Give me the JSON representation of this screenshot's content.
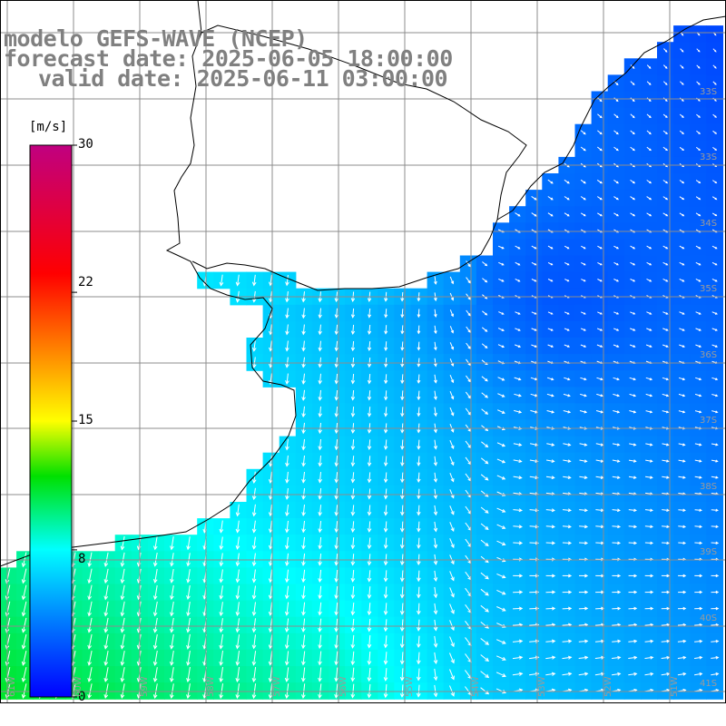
{
  "title": {
    "line1": "modelo GEFS-WAVE (NCEP)",
    "line2": "forecast date: 2025-06-05 18:00:00",
    "line3": "valid date: 2025-06-11 03:00:00"
  },
  "colorbar": {
    "unit": "[m/s]",
    "min": 0,
    "max": 30,
    "ticks": [
      "30",
      "22",
      "15",
      "8",
      "0"
    ],
    "tick_values": [
      30,
      22,
      15,
      8,
      0
    ],
    "stops": [
      {
        "v": 0,
        "color": "#0000ff"
      },
      {
        "v": 4,
        "color": "#0078ff"
      },
      {
        "v": 8,
        "color": "#00ffff"
      },
      {
        "v": 12,
        "color": "#00e000"
      },
      {
        "v": 15,
        "color": "#ffff00"
      },
      {
        "v": 19,
        "color": "#ff7f00"
      },
      {
        "v": 23,
        "color": "#ff0000"
      },
      {
        "v": 30,
        "color": "#c00080"
      }
    ]
  },
  "lat_labels": [
    "33S",
    "34S",
    "35S",
    "36S",
    "37S",
    "38S",
    "39S",
    "40S",
    "41S"
  ],
  "lon_labels": [
    "61W",
    "60W",
    "59W",
    "58W",
    "57W",
    "56W",
    "55W",
    "54W",
    "53W",
    "52W",
    "51W"
  ],
  "colors": {
    "land": "#ffffff",
    "grid": "#8c8c8c",
    "coast": "#000000",
    "arrow": "#ffffff",
    "title": "#808080"
  }
}
